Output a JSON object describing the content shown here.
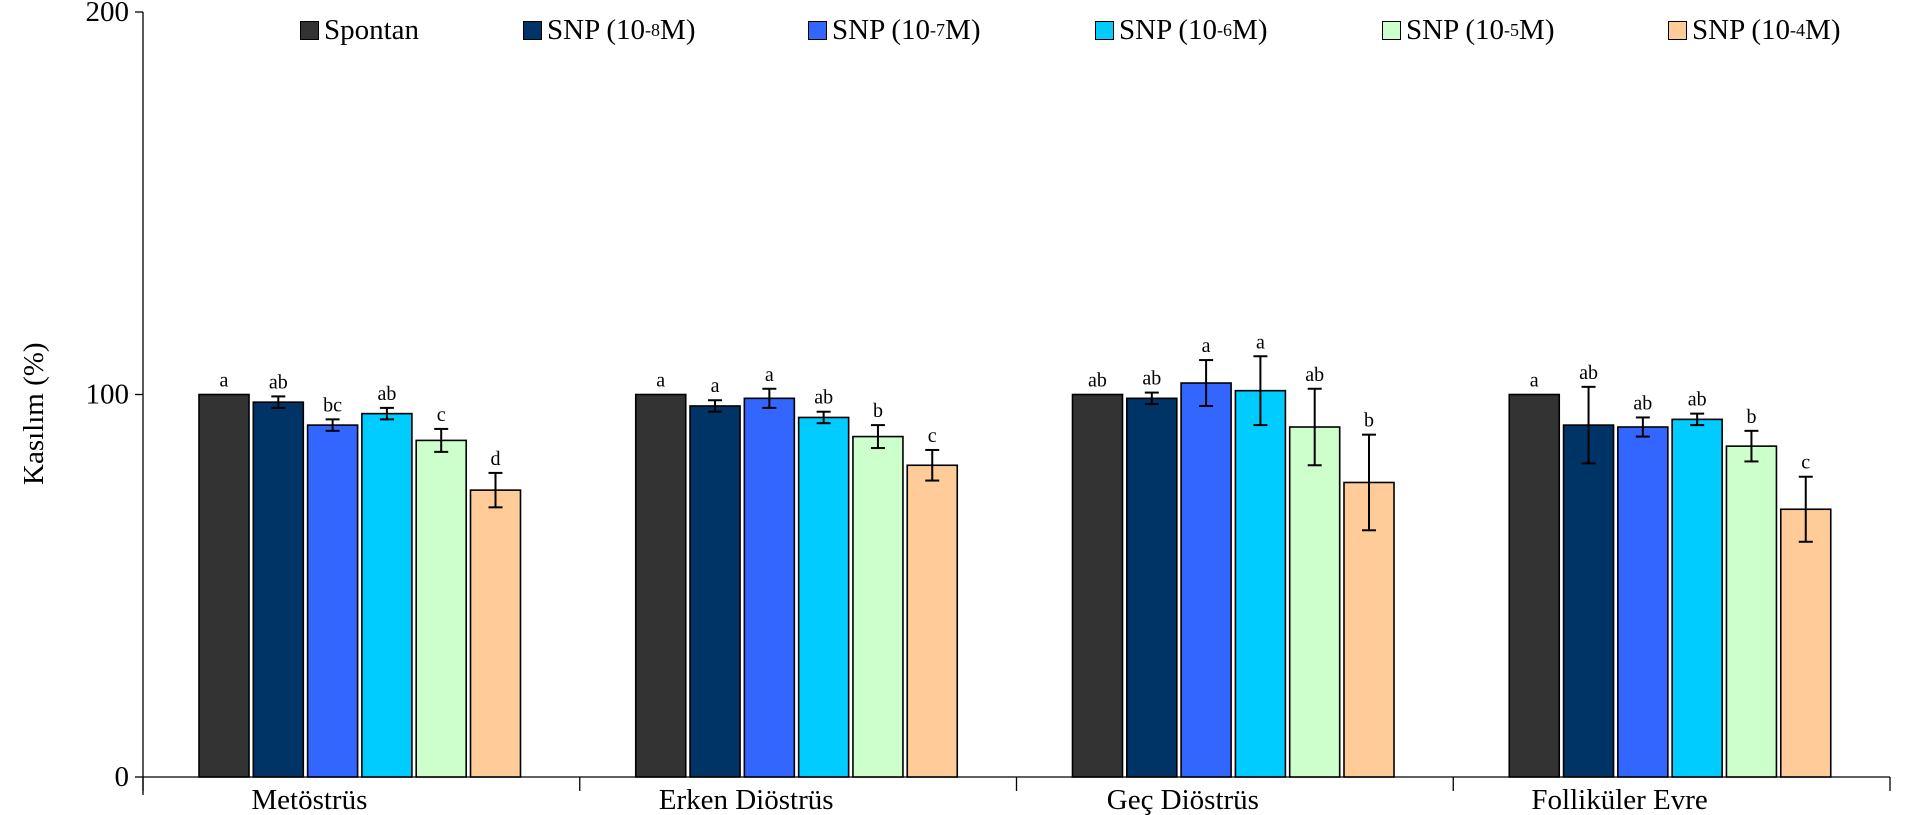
{
  "chart_data": {
    "type": "bar",
    "ylabel": "Kasılım (%)",
    "ylim": [
      0,
      200
    ],
    "yticks": [
      "0",
      "100",
      "200"
    ],
    "categories": [
      "Metöstrüs",
      "Erken Diöstrüs",
      "Geç Diöstrüs",
      "Folliküler Evre"
    ],
    "legend_position": "top",
    "grid": false,
    "series": [
      {
        "name": "Spontan",
        "legend_base": "Spontan",
        "legend_exp": "",
        "legend_tail": "",
        "color": "#333333",
        "values": [
          100,
          100,
          100,
          100
        ],
        "errors": [
          0,
          0,
          0,
          0
        ],
        "letters": [
          "a",
          "a",
          "ab",
          "a"
        ]
      },
      {
        "name": "SNP (10-8 M)",
        "legend_base": "SNP (10",
        "legend_exp": "-8",
        "legend_tail": " M)",
        "color": "#003366",
        "values": [
          98,
          97,
          99,
          92
        ],
        "errors": [
          1.5,
          1.5,
          1.5,
          10
        ],
        "letters": [
          "ab",
          "a",
          "ab",
          "ab"
        ]
      },
      {
        "name": "SNP (10-7M)",
        "legend_base": "SNP (10 ",
        "legend_exp": "-7",
        "legend_tail": "M)",
        "color": "#3366FF",
        "values": [
          92,
          99,
          103,
          91.5
        ],
        "errors": [
          1.5,
          2.5,
          6,
          2.5
        ],
        "letters": [
          "bc",
          "a",
          "a",
          "ab"
        ]
      },
      {
        "name": "SNP (10-6M)",
        "legend_base": "SNP (10 ",
        "legend_exp": "-6",
        "legend_tail": "M)",
        "color": "#00CCFF",
        "values": [
          95,
          94,
          101,
          93.5
        ],
        "errors": [
          1.5,
          1.5,
          9,
          1.5
        ],
        "letters": [
          "ab",
          "ab",
          "a",
          "ab"
        ]
      },
      {
        "name": "SNP (10-5 M)",
        "legend_base": "SNP (10",
        "legend_exp": "-5",
        "legend_tail": " M)",
        "color": "#CCFFCC",
        "values": [
          88,
          89,
          91.5,
          86.5
        ],
        "errors": [
          3,
          3,
          10,
          4
        ],
        "letters": [
          "c",
          "b",
          "ab",
          "b"
        ]
      },
      {
        "name": "SNP (10-4M)",
        "legend_base": "SNP (10 ",
        "legend_exp": "-4",
        "legend_tail": "M)",
        "color": "#FFCC99",
        "values": [
          75,
          81.5,
          77,
          70
        ],
        "errors": [
          4.5,
          4,
          12.5,
          8.5
        ],
        "letters": [
          "d",
          "c",
          "b",
          "c"
        ]
      }
    ]
  }
}
